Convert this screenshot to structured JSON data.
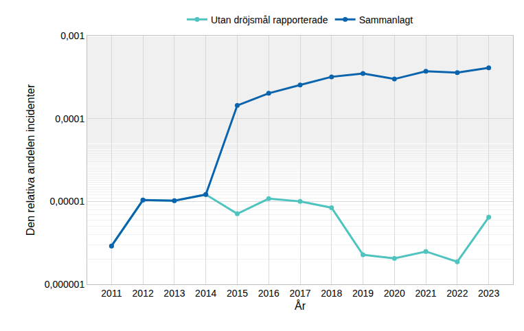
{
  "chart_data": {
    "type": "line",
    "x_label": "År",
    "y_label": "Den relativa andelen incidenter",
    "categories": [
      "2011",
      "2012",
      "2013",
      "2014",
      "2015",
      "2016",
      "2017",
      "2018",
      "2019",
      "2020",
      "2021",
      "2022",
      "2023"
    ],
    "series": [
      {
        "name": "Utan dröjsmål rapporterade",
        "color": "#4fc3be",
        "marker": "circle",
        "values": [
          2.9e-06,
          1.04e-05,
          1.02e-05,
          1.21e-05,
          7.1e-06,
          1.08e-05,
          1e-05,
          8.4e-06,
          2.27e-06,
          2.06e-06,
          2.49e-06,
          1.87e-06,
          6.45e-06
        ]
      },
      {
        "name": "Sammanlagt",
        "color": "#0a64ad",
        "marker": "circle",
        "values": [
          2.9e-06,
          1.04e-05,
          1.02e-05,
          1.21e-05,
          0.000144,
          0.000202,
          0.000254,
          0.000319,
          0.00035,
          0.0003,
          0.000372,
          0.000358,
          0.000409
        ]
      }
    ],
    "log": "y",
    "ylim": [
      1e-06,
      0.001
    ],
    "yticks": [
      {
        "value": 1e-06,
        "label": "0,000001"
      },
      {
        "value": 1e-05,
        "label": "0,00001"
      },
      {
        "value": 0.0001,
        "label": "0,0001"
      },
      {
        "value": 0.001,
        "label": "0,001"
      }
    ],
    "grid": true,
    "legend": "top"
  }
}
